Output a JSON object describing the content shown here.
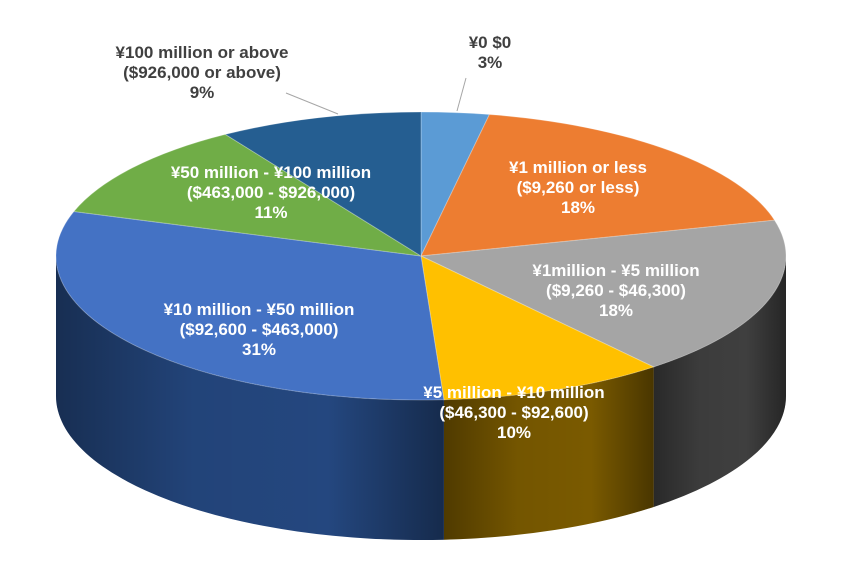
{
  "chart_data": {
    "type": "pie",
    "style": "3d",
    "slices": [
      {
        "lines": [
          "¥0 $0"
        ],
        "percent_label": "3%",
        "value": 3,
        "color": "#5B9BD5",
        "side": "#2E5F8F",
        "label_outside": true
      },
      {
        "lines": [
          "¥1 million or less",
          "($9,260 or less)"
        ],
        "percent_label": "18%",
        "value": 18,
        "color": "#ED7D31",
        "side": "#8A4410",
        "label_color": "#ffffff"
      },
      {
        "lines": [
          "¥1million - ¥5 million",
          "($9,260 - $46,300)"
        ],
        "percent_label": "18%",
        "value": 18,
        "color": "#A5A5A5",
        "side": "#3F3F3F",
        "label_color": "#ffffff"
      },
      {
        "lines": [
          "¥5 million - ¥10 million",
          "($46,300 - $92,600)"
        ],
        "percent_label": "10%",
        "value": 10,
        "color": "#FFC000",
        "side": "#7A5A00",
        "label_color": "#ffffff"
      },
      {
        "lines": [
          "¥10 million - ¥50 million",
          "($92,600 - $463,000)"
        ],
        "percent_label": "31%",
        "value": 31,
        "color": "#4472C4",
        "side": "#24477F",
        "label_color": "#ffffff"
      },
      {
        "lines": [
          "¥50 million - ¥100 million",
          "($463,000 - $926,000)"
        ],
        "percent_label": "11%",
        "value": 11,
        "color": "#70AD47",
        "side": "#3C6A22",
        "label_color": "#ffffff"
      },
      {
        "lines": [
          "¥100 million or above",
          "($926,000 or above)"
        ],
        "percent_label": "9%",
        "value": 9,
        "color": "#255E91",
        "side": "#153A5C",
        "label_outside": true
      }
    ],
    "outside_label_color": "#404040"
  }
}
